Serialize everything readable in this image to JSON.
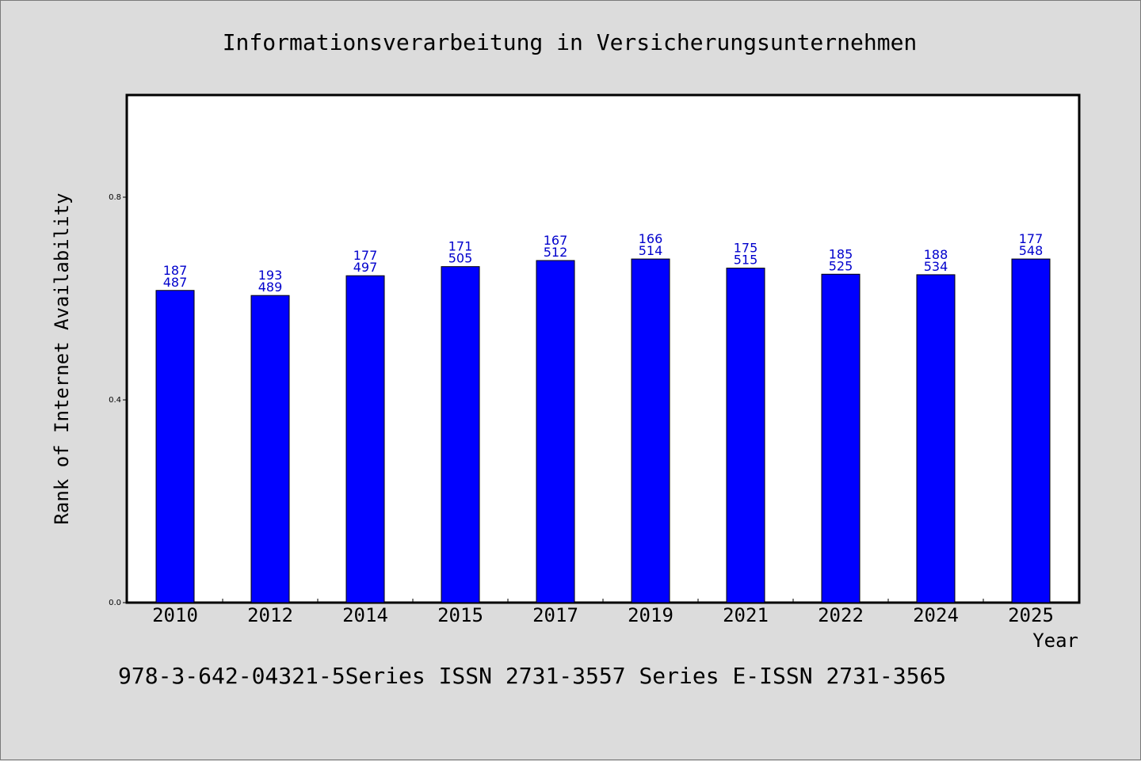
{
  "chart_data": {
    "type": "bar",
    "title": "Informationsverarbeitung in Versicherungsunternehmen",
    "xlabel": "Year",
    "ylabel": "Rank of Internet Availability",
    "categories": [
      "2010",
      "2012",
      "2014",
      "2015",
      "2017",
      "2019",
      "2021",
      "2022",
      "2024",
      "2025"
    ],
    "values": [
      0.616,
      0.606,
      0.645,
      0.663,
      0.675,
      0.678,
      0.66,
      0.648,
      0.647,
      0.678
    ],
    "labels_top": [
      "187",
      "193",
      "177",
      "171",
      "167",
      "166",
      "175",
      "185",
      "188",
      "177"
    ],
    "labels_bottom": [
      "487",
      "489",
      "497",
      "505",
      "512",
      "514",
      "515",
      "525",
      "534",
      "548"
    ],
    "ylim": [
      0,
      1.0
    ],
    "yticks": [
      0.0,
      0.4,
      0.8
    ],
    "ytick_labels": [
      "0.0",
      "0.4",
      "0.8"
    ],
    "grid": false,
    "legend": "none",
    "bar_color": "#0000ff",
    "label_color": "#0000cc"
  },
  "footer": {
    "text": "978-3-642-04321-5Series ISSN 2731-3557 Series E-ISSN 2731-3565"
  }
}
